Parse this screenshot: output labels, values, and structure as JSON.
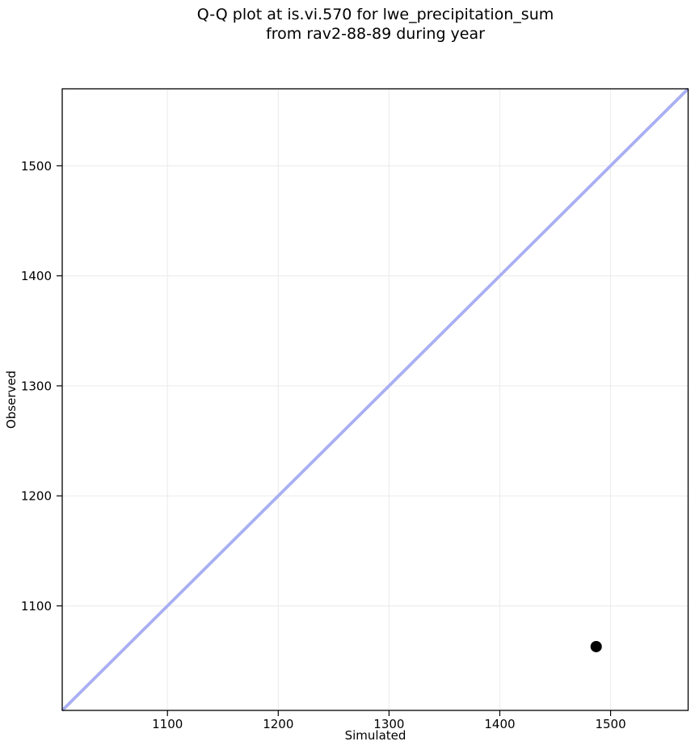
{
  "figure": {
    "title_line1": "Q-Q plot at is.vi.570 for lwe_precipitation_sum",
    "title_line2": "from rav2-88-89 during year",
    "xlabel": "Simulated",
    "ylabel": "Observed"
  },
  "chart_data": {
    "type": "scatter",
    "title": "Q-Q plot at is.vi.570 for lwe_precipitation_sum\nfrom rav2-88-89 during year",
    "xlabel": "Simulated",
    "ylabel": "Observed",
    "xlim": [
      1005,
      1570
    ],
    "ylim": [
      1005,
      1570
    ],
    "xticks": [
      1100,
      1200,
      1300,
      1400,
      1500
    ],
    "yticks": [
      1100,
      1200,
      1300,
      1400,
      1500
    ],
    "grid": true,
    "legend": "none",
    "series": [
      {
        "name": "identity_line",
        "type": "line",
        "color": "#a9aff2",
        "line_width": 3.8,
        "points": [
          {
            "x": 1005,
            "y": 1005
          },
          {
            "x": 1570,
            "y": 1570
          }
        ]
      },
      {
        "name": "qq_points",
        "type": "scatter",
        "color": "#000000",
        "marker_radius": 7,
        "points": [
          {
            "x": 1487,
            "y": 1063
          }
        ]
      }
    ],
    "colors": {
      "grid": "#ececec",
      "spine": "#000000",
      "background": "#ffffff",
      "text": "#000000"
    }
  }
}
